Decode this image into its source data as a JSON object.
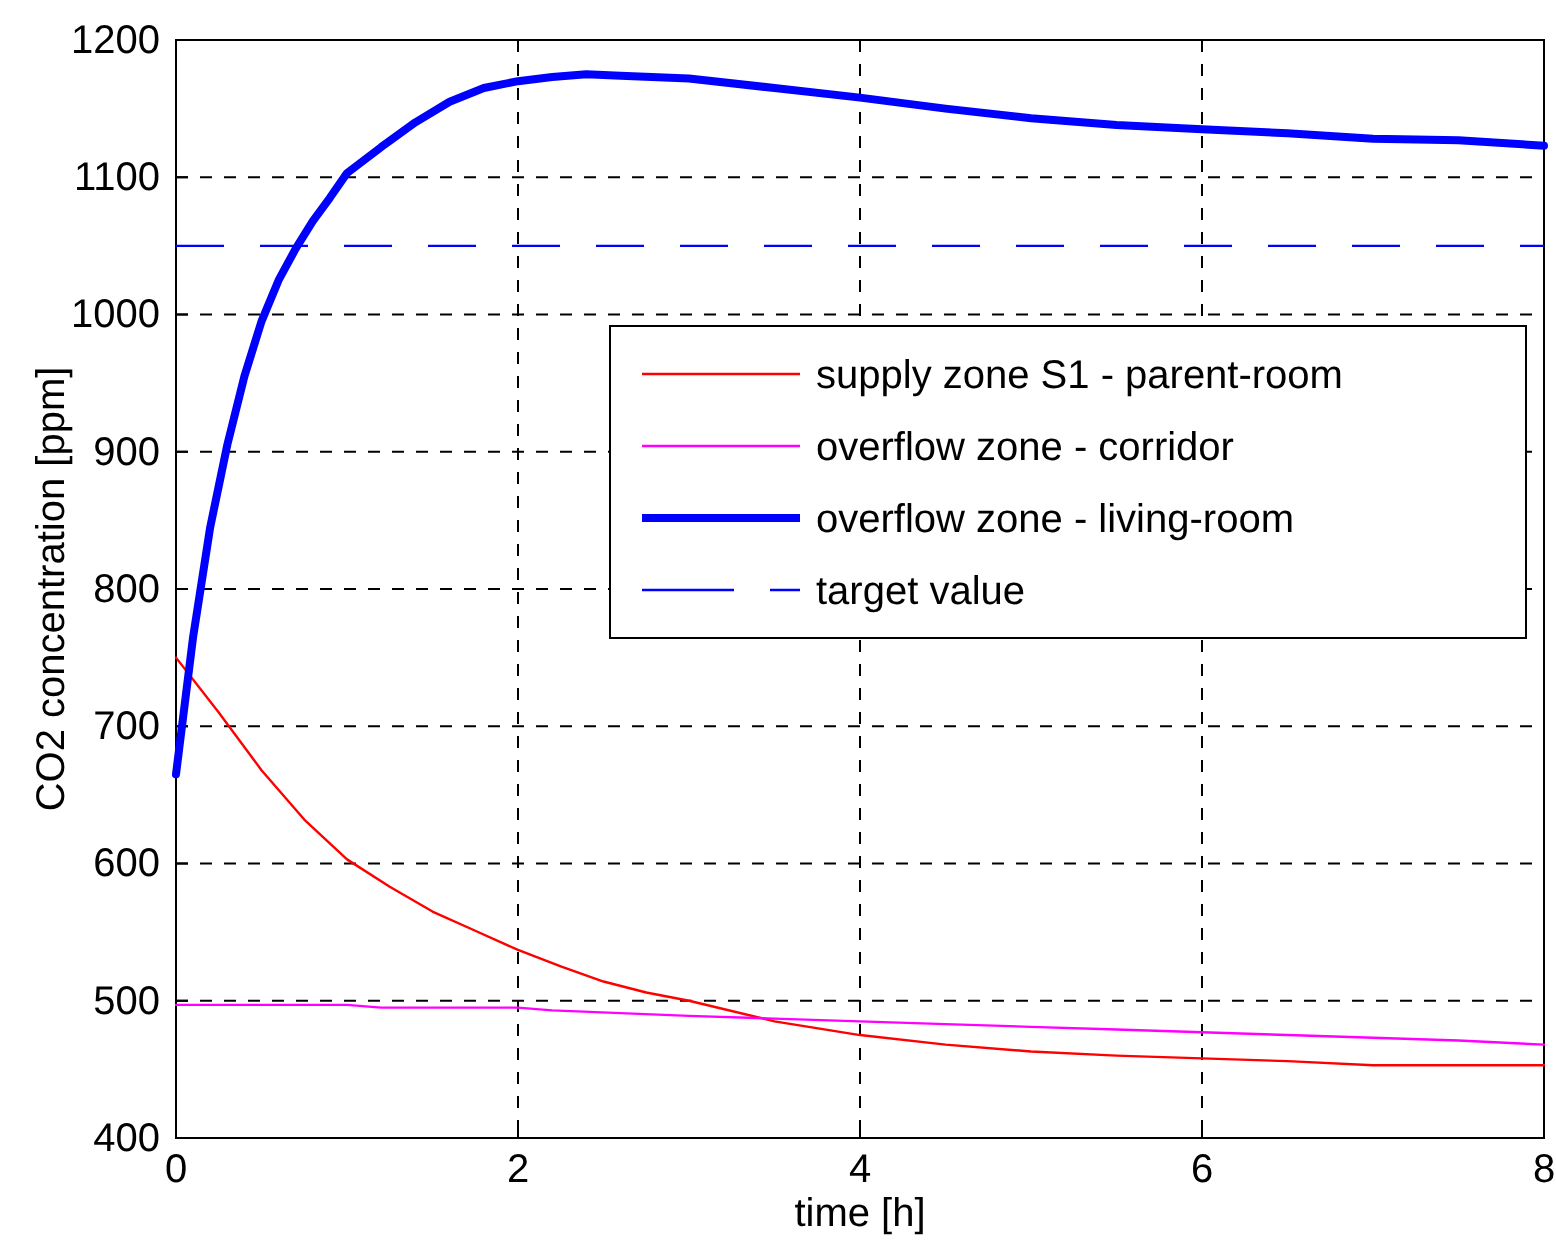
{
  "chart_data": {
    "type": "line",
    "xlabel": "time [h]",
    "ylabel": "CO2 concentration [ppm]",
    "xlim": [
      0,
      8
    ],
    "xticks": [
      0,
      2,
      4,
      6,
      8
    ],
    "ylim": [
      400,
      1200
    ],
    "yticks": [
      400,
      500,
      600,
      700,
      800,
      900,
      1000,
      1100,
      1200
    ],
    "grid": true,
    "legend": "top right",
    "line_style": "solid",
    "marker": "none",
    "series": [
      {
        "name": "supply zone S1 - parent-room",
        "color": "#ff0000",
        "x": [
          0,
          0.25,
          0.5,
          0.75,
          1,
          1.25,
          1.5,
          1.75,
          2,
          2.25,
          2.5,
          2.75,
          3,
          3.5,
          4,
          4.5,
          5,
          5.5,
          6,
          6.5,
          7,
          7.5,
          8
        ],
        "values": [
          750,
          710,
          668,
          632,
          603,
          583,
          565,
          551,
          537,
          525,
          514,
          506,
          500,
          485,
          475,
          468,
          463,
          460,
          458,
          456,
          453,
          453,
          453
        ]
      },
      {
        "name": "overflow zone - corridor",
        "color": "#ff00ff",
        "x": [
          0,
          1,
          1.2,
          2,
          2.2,
          3,
          3.5,
          4,
          4.5,
          5,
          5.5,
          6,
          6.5,
          7,
          7.5,
          8
        ],
        "values": [
          497,
          497,
          495,
          495,
          493,
          489,
          487,
          485,
          483,
          481,
          479,
          477,
          475,
          473,
          471,
          468
        ]
      },
      {
        "name": "overflow zone - living-room",
        "color": "#0000ff",
        "x": [
          0,
          0.1,
          0.2,
          0.3,
          0.4,
          0.5,
          0.6,
          0.7,
          0.8,
          0.9,
          1,
          1.2,
          1.4,
          1.6,
          1.8,
          2,
          2.2,
          2.4,
          2.6,
          3,
          3.5,
          4,
          4.5,
          5,
          5.5,
          6,
          6.5,
          7,
          7.5,
          8
        ],
        "values": [
          665,
          765,
          845,
          905,
          955,
          995,
          1025,
          1048,
          1068,
          1085,
          1103,
          1122,
          1140,
          1155,
          1165,
          1170,
          1173,
          1175,
          1174,
          1172,
          1165,
          1158,
          1150,
          1143,
          1138,
          1135,
          1132,
          1128,
          1127,
          1123
        ]
      }
    ],
    "ref_lines": [
      {
        "axis": "y",
        "value": 1050,
        "label": "target value",
        "color": "#0000ff",
        "line_style": "dashed"
      }
    ]
  }
}
